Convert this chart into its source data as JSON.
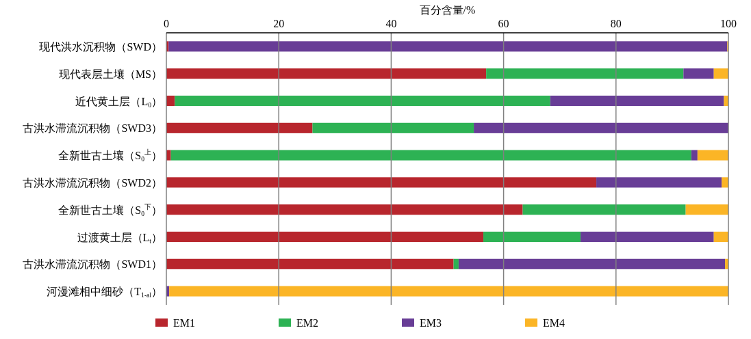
{
  "chart_data": {
    "type": "bar",
    "orientation": "horizontal",
    "stacked": true,
    "xlabel": "百分含量/%",
    "categories": [
      "现代洪水沉积物（SWD）",
      "现代表层土壤（MS）",
      "近代黄土层（L$_{0}$）",
      "古洪水滞流沉积物（SWD3）",
      "全新世古土壤（S$_{0}$$^{上}$）",
      "古洪水滞流沉积物（SWD2）",
      "全新世古土壤（S$_{0}$$^{下}$）",
      "过渡黄土层（L$_{t}$）",
      "古洪水滞流沉积物（SWD1）",
      "河漫滩相中细砂（T$_{1-al}$）"
    ],
    "series": [
      {
        "name": "EM1",
        "color": "#b8262d",
        "values": [
          0.4,
          56.9,
          1.5,
          26,
          0.8,
          76.5,
          63.4,
          56.4,
          51.1,
          0
        ]
      },
      {
        "name": "EM2",
        "color": "#2db254",
        "values": [
          0,
          35.1,
          66.8,
          28.7,
          92.6,
          0,
          29,
          17.3,
          0.9,
          0
        ]
      },
      {
        "name": "EM3",
        "color": "#683d96",
        "values": [
          99.4,
          5.4,
          30.9,
          45.3,
          1.1,
          22.3,
          0,
          23.7,
          47.4,
          0.5
        ]
      },
      {
        "name": "EM4",
        "color": "#fbb526",
        "values": [
          0.2,
          2.6,
          0.8,
          0,
          5.5,
          1.2,
          7.6,
          2.6,
          0.6,
          99.5
        ]
      }
    ],
    "xlim": [
      0,
      100
    ],
    "xticks": [
      0,
      20,
      40,
      60,
      80,
      100
    ],
    "grid": "x",
    "legend": "bottom"
  }
}
